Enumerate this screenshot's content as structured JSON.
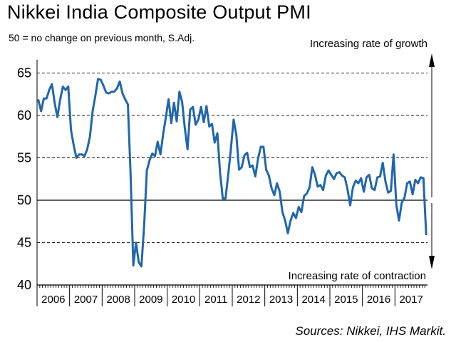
{
  "header": {
    "title": "Nikkei India Composite Output PMI",
    "subtitle": "50 = no change on previous month, S.Adj."
  },
  "footer": {
    "source": "Sources: Nikkei, IHS Markit."
  },
  "chart_data": {
    "type": "line",
    "title": "Nikkei India Composite Output PMI",
    "subtitle": "50 = no change on previous month, S.Adj.",
    "xlabel": "",
    "ylabel": "",
    "ylim": [
      40,
      67
    ],
    "yticks": [
      40,
      45,
      50,
      55,
      60,
      65
    ],
    "reference_line": 50,
    "grid": "horizontal dashed",
    "annotations": {
      "top": "Increasing rate of growth",
      "bottom": "Increasing rate of contraction"
    },
    "years": [
      "2006",
      "2007",
      "2008",
      "2009",
      "2010",
      "2011",
      "2012",
      "2013",
      "2014",
      "2015",
      "2016",
      "2017"
    ],
    "line_color": "#2166ac",
    "series": [
      {
        "values": [
          61.8,
          60.5,
          62.0,
          62.0,
          63.0,
          63.7,
          61.5,
          59.8,
          61.8,
          63.4,
          63.0,
          63.4,
          58.3,
          56.5,
          55.0,
          55.4,
          55.4,
          55.2,
          56.0,
          57.5,
          60.5,
          62.3,
          64.3,
          64.2,
          63.5,
          62.7,
          62.6,
          62.8,
          62.8,
          63.2,
          64.0,
          62.6,
          61.9,
          61.3,
          53.0,
          42.3,
          45.0,
          42.7,
          42.2,
          47.0,
          53.5,
          54.7,
          55.5,
          55.2,
          56.9,
          55.4,
          57.8,
          59.8,
          61.9,
          59.1,
          61.5,
          59.3,
          62.8,
          61.6,
          58.5,
          56.0,
          60.7,
          61.0,
          58.9,
          59.5,
          61.0,
          59.2,
          61.1,
          58.7,
          59.0,
          56.8,
          57.9,
          53.2,
          50.2,
          50.2,
          53.0,
          56.1,
          59.5,
          57.7,
          53.6,
          53.9,
          55.3,
          55.6,
          53.9,
          54.1,
          52.8,
          54.9,
          56.3,
          56.3,
          53.6,
          52.9,
          51.4,
          50.6,
          52.0,
          51.0,
          48.6,
          47.6,
          46.1,
          47.6,
          48.5,
          47.9,
          49.2,
          48.6,
          50.5,
          50.8,
          51.5,
          53.9,
          53.0,
          51.6,
          51.8,
          51.2,
          52.9,
          53.5,
          53.0,
          52.5,
          53.2,
          53.3,
          52.9,
          52.7,
          51.3,
          49.4,
          51.5,
          52.3,
          52.0,
          52.6,
          51.0,
          52.7,
          53.0,
          51.4,
          51.2,
          52.7,
          52.8,
          54.4,
          52.2,
          50.9,
          51.1,
          55.4,
          49.5,
          47.6,
          49.7,
          50.3,
          52.0,
          52.2,
          50.7,
          52.4,
          52.0,
          52.7,
          52.6,
          46.0
        ]
      }
    ]
  }
}
